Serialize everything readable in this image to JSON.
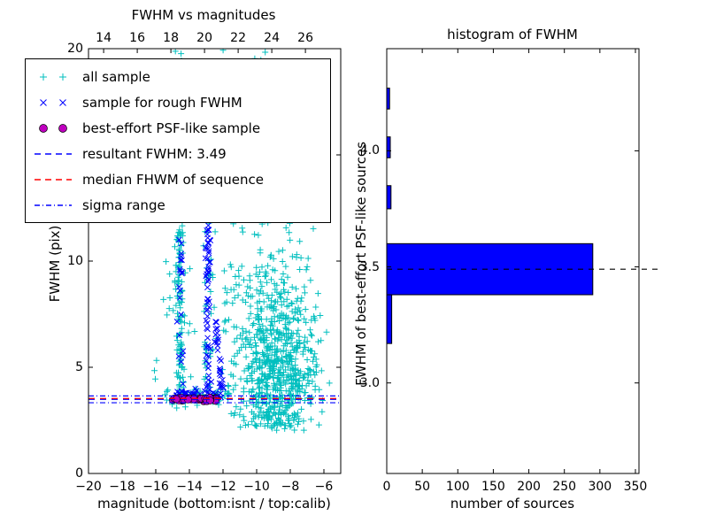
{
  "figure": {
    "background": "#ffffff"
  },
  "chart_data": [
    {
      "type": "scatter",
      "title": "FWHM vs magnitudes",
      "xlabel": "magnitude (bottom:isnt / top:calib)",
      "ylabel": "FWHM (pix)",
      "xlim": [
        -20,
        -5
      ],
      "ylim": [
        0,
        20
      ],
      "top_xlim": [
        13.1,
        28.1
      ],
      "x_ticks": [
        -20,
        -18,
        -16,
        -14,
        -12,
        -10,
        -8,
        -6
      ],
      "x_tick_labels": [
        "−20",
        "−18",
        "−16",
        "−14",
        "−12",
        "−10",
        "−8",
        "−6"
      ],
      "y_ticks": [
        0,
        5,
        10,
        15,
        20
      ],
      "y_tick_labels": [
        "0",
        "5",
        "10",
        "15",
        "20"
      ],
      "top_ticks": [
        14,
        16,
        18,
        20,
        22,
        24,
        26
      ],
      "top_tick_labels": [
        "14",
        "16",
        "18",
        "20",
        "22",
        "24",
        "26"
      ],
      "seed": 42,
      "series": [
        {
          "name": "all sample",
          "marker": "plus",
          "color": "#00bfbf",
          "clusters": [
            {
              "dist": "normal",
              "cx": -8.8,
              "cy": 4.7,
              "sx": 1.2,
              "sy": 1.7,
              "n": 520,
              "clip": {
                "xmin": -12.3,
                "xmax": -6.0,
                "ymin": 2.0,
                "ymax": 12.0
              }
            },
            {
              "dist": "normal",
              "cx": -9.2,
              "cy": 7.3,
              "sx": 1.5,
              "sy": 2.9,
              "n": 230,
              "clip": {
                "xmin": -13.0,
                "xmax": -5.4,
                "ymin": 2.2,
                "ymax": 16.5
              }
            },
            {
              "dist": "column",
              "cx": -14.55,
              "sx": 0.13,
              "y0": 3.3,
              "y1": 11.7,
              "n": 120
            },
            {
              "dist": "column",
              "cx": -14.45,
              "sx": 0.35,
              "y0": 11.7,
              "y1": 20.0,
              "n": 30
            },
            {
              "dist": "column",
              "cx": -12.9,
              "sx": 0.15,
              "y0": 4.0,
              "y1": 14.0,
              "n": 45
            },
            {
              "dist": "uniform",
              "x0": -16.2,
              "x1": -6.2,
              "y0": 3.0,
              "y1": 19.8,
              "n": 100
            },
            {
              "dist": "column",
              "cx": -13.1,
              "sx": 0.5,
              "y0": 16.5,
              "y1": 20.0,
              "n": 20
            },
            {
              "dist": "column",
              "cx": -9.9,
              "sx": 0.35,
              "y0": 18.5,
              "y1": 20.0,
              "n": 8
            },
            {
              "dist": "hline",
              "y": 3.6,
              "sy": 0.22,
              "x0": -15.5,
              "x1": -11.6,
              "n": 48
            },
            {
              "dist": "normal",
              "cx": -8.8,
              "cy": 2.7,
              "sx": 0.9,
              "sy": 0.35,
              "n": 32,
              "clip": {
                "xmin": -11.0,
                "xmax": -6.3,
                "ymin": 1.6,
                "ymax": 3.4
              }
            }
          ]
        },
        {
          "name": "sample for rough FWHM",
          "marker": "x",
          "color": "#0000ff",
          "clusters": [
            {
              "dist": "column",
              "cx": -12.9,
              "sx": 0.07,
              "y0": 3.7,
              "y1": 11.7,
              "n": 60
            },
            {
              "dist": "slant",
              "x0": -12.05,
              "y0": 4.0,
              "x1": -12.45,
              "y1": 7.2,
              "sx": 0.07,
              "n": 28
            },
            {
              "dist": "column",
              "cx": -14.52,
              "sx": 0.07,
              "y0": 5.0,
              "y1": 11.5,
              "n": 20
            },
            {
              "dist": "hline",
              "y": 3.8,
              "sy": 0.18,
              "x0": -14.9,
              "x1": -12.1,
              "n": 38
            }
          ]
        },
        {
          "name": "best-effort PSF-like sample",
          "marker": "circle",
          "color": "#bf00bf",
          "clusters": [
            {
              "dist": "hline",
              "y": 3.49,
              "sy": 0.04,
              "x0": -15.1,
              "x1": -12.4,
              "n": 62
            }
          ]
        }
      ],
      "lines": [
        {
          "name": "resultant FWHM",
          "value": 3.49,
          "color": "#0000ff",
          "dash": "7 6"
        },
        {
          "name": "median FHWM of sequence",
          "value": 3.53,
          "color": "#ff0000",
          "dash": "7 6"
        },
        {
          "name": "sigma range low",
          "value": 3.33,
          "color": "#0000ff",
          "dash": "6 3 1 3"
        },
        {
          "name": "sigma range high",
          "value": 3.65,
          "color": "#0000ff",
          "dash": "6 3 1 3"
        }
      ],
      "legend": [
        {
          "label": "all sample",
          "marker": "plus",
          "color": "#00bfbf"
        },
        {
          "label": "sample for rough FWHM",
          "marker": "x",
          "color": "#0000ff"
        },
        {
          "label": "best-effort PSF-like sample",
          "marker": "circle",
          "color": "#bf00bf"
        },
        {
          "label": "resultant FWHM: 3.49",
          "marker": "dashed",
          "color": "#0000ff"
        },
        {
          "label": "median FHWM of sequence",
          "marker": "dashed",
          "color": "#ff0000"
        },
        {
          "label": "sigma range",
          "marker": "dashdot",
          "color": "#0000ff"
        }
      ]
    },
    {
      "type": "bar-horizontal",
      "title": "histogram of FWHM",
      "xlabel": "number of sources",
      "ylabel": "FWHM of best-effort PSF-like sources",
      "xlim": [
        0,
        355
      ],
      "ylim": [
        2.61,
        4.44
      ],
      "x_ticks": [
        0,
        50,
        100,
        150,
        200,
        250,
        300,
        350
      ],
      "x_tick_labels": [
        "0",
        "50",
        "100",
        "150",
        "200",
        "250",
        "300",
        "350"
      ],
      "y_ticks": [
        3.0,
        3.5,
        4.0
      ],
      "y_tick_labels": [
        "3.0",
        "3.5",
        "4.0"
      ],
      "bar_color": "#0000ff",
      "bar_edge": "#000000",
      "bars": [
        {
          "y0": 3.17,
          "y1": 3.38,
          "count": 7
        },
        {
          "y0": 3.38,
          "y1": 3.6,
          "count": 290
        },
        {
          "y0": 3.75,
          "y1": 3.85,
          "count": 6
        },
        {
          "y0": 3.97,
          "y1": 4.06,
          "count": 5
        },
        {
          "y0": 4.18,
          "y1": 4.27,
          "count": 4
        }
      ],
      "median_line": {
        "value": 3.49,
        "color": "#000000",
        "dash": "6 6"
      }
    }
  ]
}
